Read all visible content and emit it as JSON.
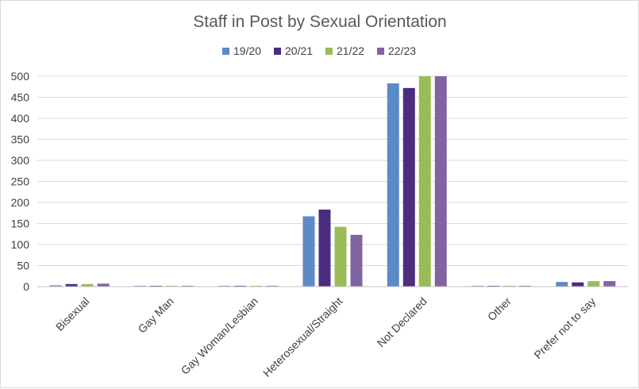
{
  "chart_data": {
    "type": "bar",
    "title": "Staff in Post by Sexual Orientation",
    "xlabel": "",
    "ylabel": "",
    "categories": [
      "Bisexual",
      "Gay Man",
      "Gay Woman/Lesbian",
      "Heterosexual/Straight",
      "Not Declared",
      "Other",
      "Prefer not to say"
    ],
    "series": [
      {
        "name": "19/20",
        "color": "#5b8ac6",
        "values": [
          3,
          1,
          1,
          167,
          483,
          0,
          11
        ]
      },
      {
        "name": "20/21",
        "color": "#4b2c7f",
        "values": [
          6,
          1,
          1,
          183,
          472,
          1,
          10
        ]
      },
      {
        "name": "21/22",
        "color": "#9bbb59",
        "values": [
          6,
          1,
          1,
          142,
          500,
          2,
          13
        ]
      },
      {
        "name": "22/23",
        "color": "#8064a2",
        "values": [
          7,
          2,
          2,
          123,
          500,
          2,
          13
        ]
      }
    ],
    "ylim": [
      0,
      500
    ],
    "yticks": [
      0,
      50,
      100,
      150,
      200,
      250,
      300,
      350,
      400,
      450,
      500
    ],
    "grid": true,
    "legend_position": "top-center"
  }
}
